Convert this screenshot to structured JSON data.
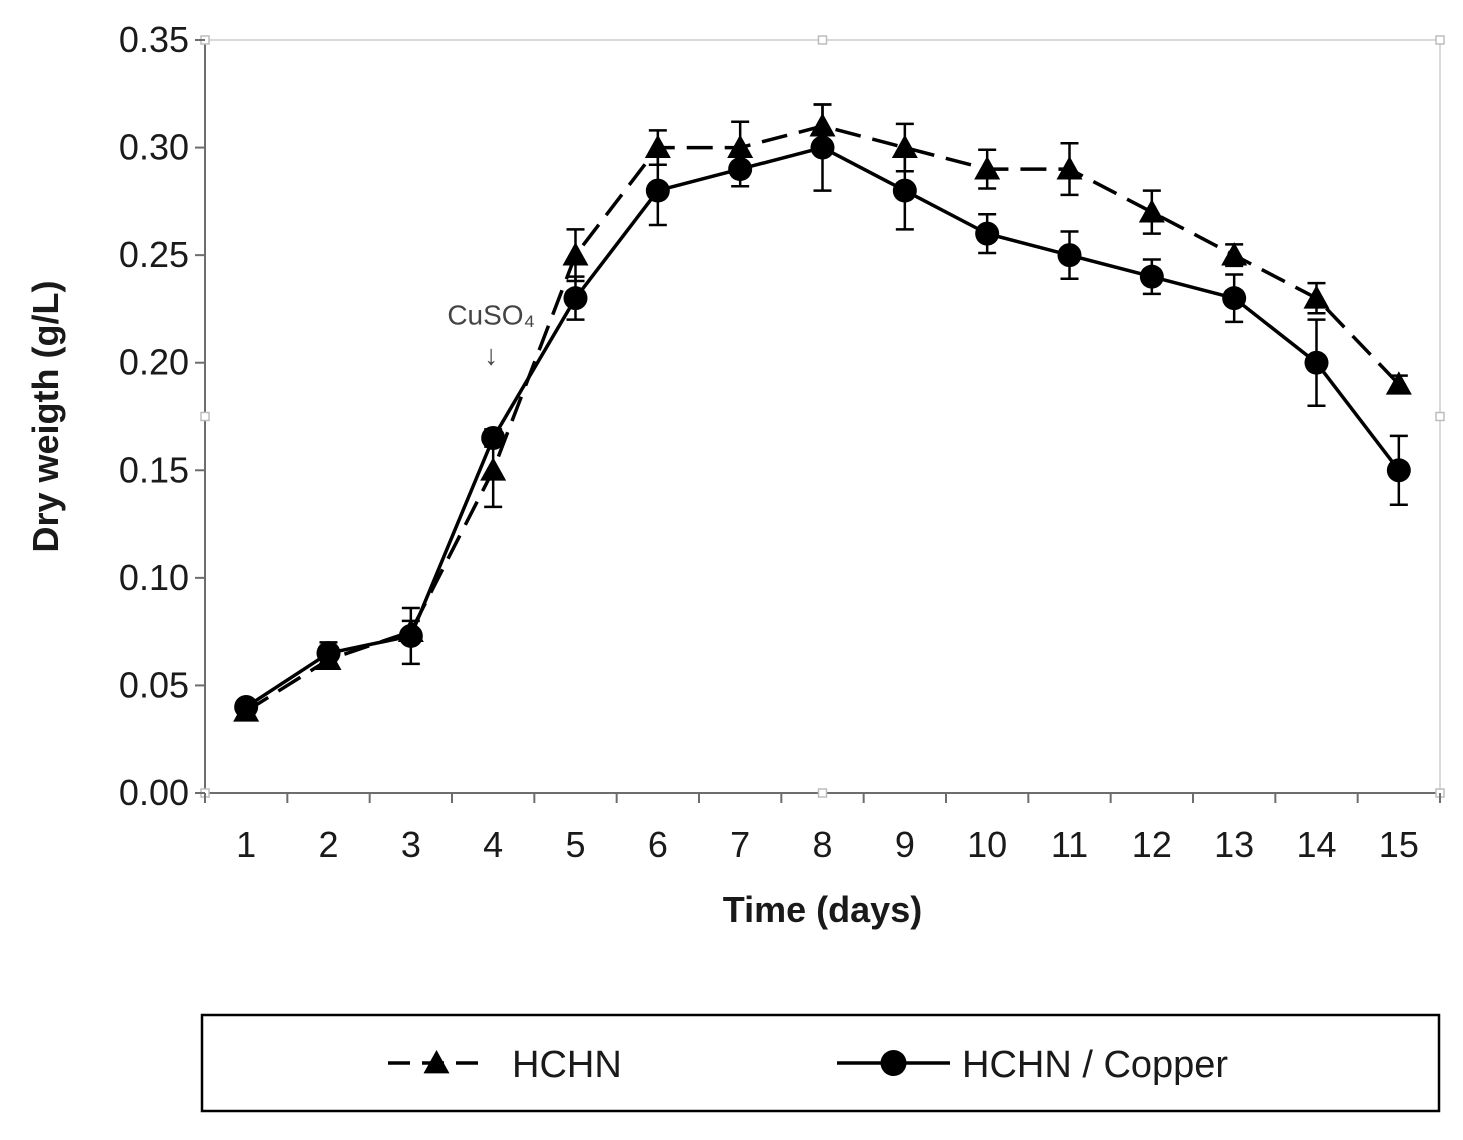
{
  "chart_data": {
    "type": "line",
    "title": "",
    "xlabel": "Time (days)",
    "ylabel": "Dry weigth (g/L)",
    "x": [
      1,
      2,
      3,
      4,
      5,
      6,
      7,
      8,
      9,
      10,
      11,
      12,
      13,
      14,
      15
    ],
    "xlim": [
      0.5,
      15.5
    ],
    "ylim": [
      0,
      0.35
    ],
    "yticks": [
      "0.00",
      "0.05",
      "0.10",
      "0.15",
      "0.20",
      "0.25",
      "0.30",
      "0.35"
    ],
    "grid": false,
    "legend_position": "bottom",
    "series": [
      {
        "name": "HCHN",
        "marker": "triangle",
        "line_style": "dashed",
        "color": "#000000",
        "values": [
          0.038,
          0.062,
          0.075,
          0.15,
          0.25,
          0.3,
          0.3,
          0.31,
          0.3,
          0.29,
          0.29,
          0.27,
          0.25,
          0.23,
          0.19
        ],
        "errors": [
          0.003,
          0.004,
          0.005,
          0.017,
          0.012,
          0.008,
          0.012,
          0.01,
          0.011,
          0.009,
          0.012,
          0.01,
          0.005,
          0.007,
          0.004
        ]
      },
      {
        "name": "HCHN / Copper",
        "marker": "circle",
        "line_style": "solid",
        "color": "#000000",
        "values": [
          0.04,
          0.065,
          0.073,
          0.165,
          0.23,
          0.28,
          0.29,
          0.3,
          0.28,
          0.26,
          0.25,
          0.24,
          0.23,
          0.2,
          0.15
        ],
        "errors": [
          0.003,
          0.005,
          0.013,
          0.004,
          0.01,
          0.016,
          0.008,
          0.02,
          0.018,
          0.009,
          0.011,
          0.008,
          0.011,
          0.02,
          0.016
        ]
      }
    ],
    "annotations": [
      {
        "text": "CuSO₄",
        "arrow": "↓",
        "x": 4,
        "y": 0.2
      }
    ]
  }
}
